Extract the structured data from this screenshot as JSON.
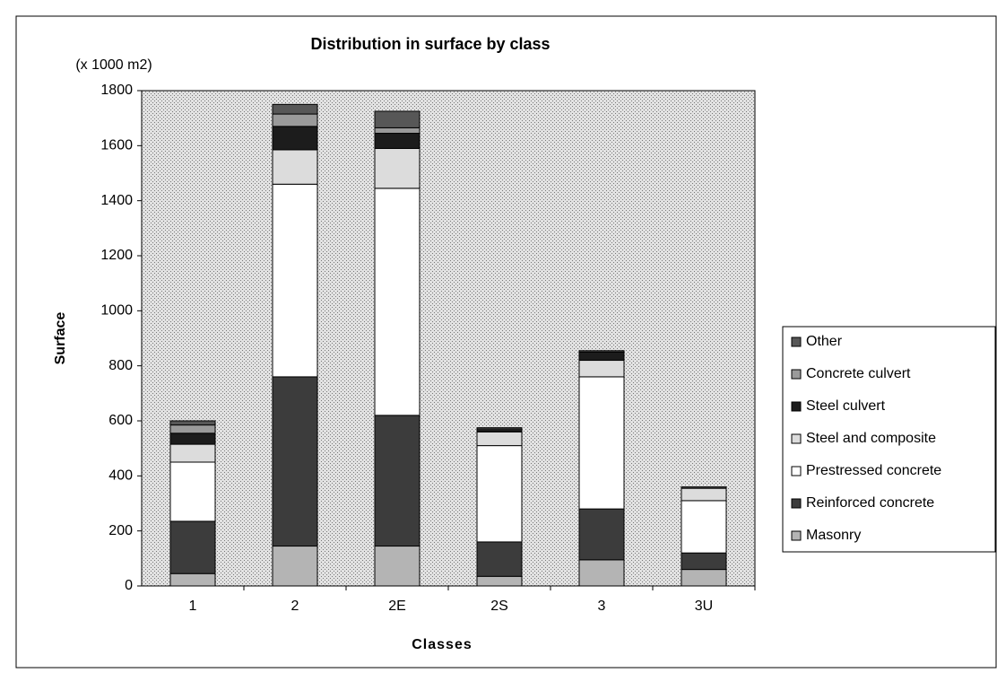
{
  "chart_data": {
    "type": "stacked_bar",
    "title": "Distribution in surface by class",
    "unit_label": "(x 1000 m2)",
    "x_label": "Classes",
    "y_label": "Surface",
    "categories": [
      "1",
      "2",
      "2E",
      "2S",
      "3",
      "3U"
    ],
    "series": [
      {
        "name": "Masonry",
        "color": "#b4b4b4",
        "values": [
          45,
          145,
          145,
          35,
          95,
          60
        ]
      },
      {
        "name": "Reinforced concrete",
        "color": "#3c3c3c",
        "values": [
          190,
          615,
          475,
          125,
          185,
          60
        ]
      },
      {
        "name": "Prestressed concrete",
        "color": "#ffffff",
        "values": [
          215,
          700,
          825,
          350,
          480,
          190
        ]
      },
      {
        "name": "Steel and composite",
        "color": "#dcdcdc",
        "values": [
          65,
          125,
          145,
          50,
          60,
          45
        ]
      },
      {
        "name": "Steel culvert",
        "color": "#1c1c1c",
        "values": [
          40,
          85,
          55,
          5,
          30,
          0
        ]
      },
      {
        "name": "Concrete culvert",
        "color": "#9a9a9a",
        "values": [
          30,
          45,
          20,
          5,
          0,
          0
        ]
      },
      {
        "name": "Other",
        "color": "#575757",
        "values": [
          15,
          35,
          60,
          5,
          5,
          5
        ]
      }
    ],
    "ylim": [
      0,
      1800
    ],
    "yticks": [
      0,
      200,
      400,
      600,
      800,
      1000,
      1200,
      1400,
      1600,
      1800
    ],
    "legend": "right"
  }
}
